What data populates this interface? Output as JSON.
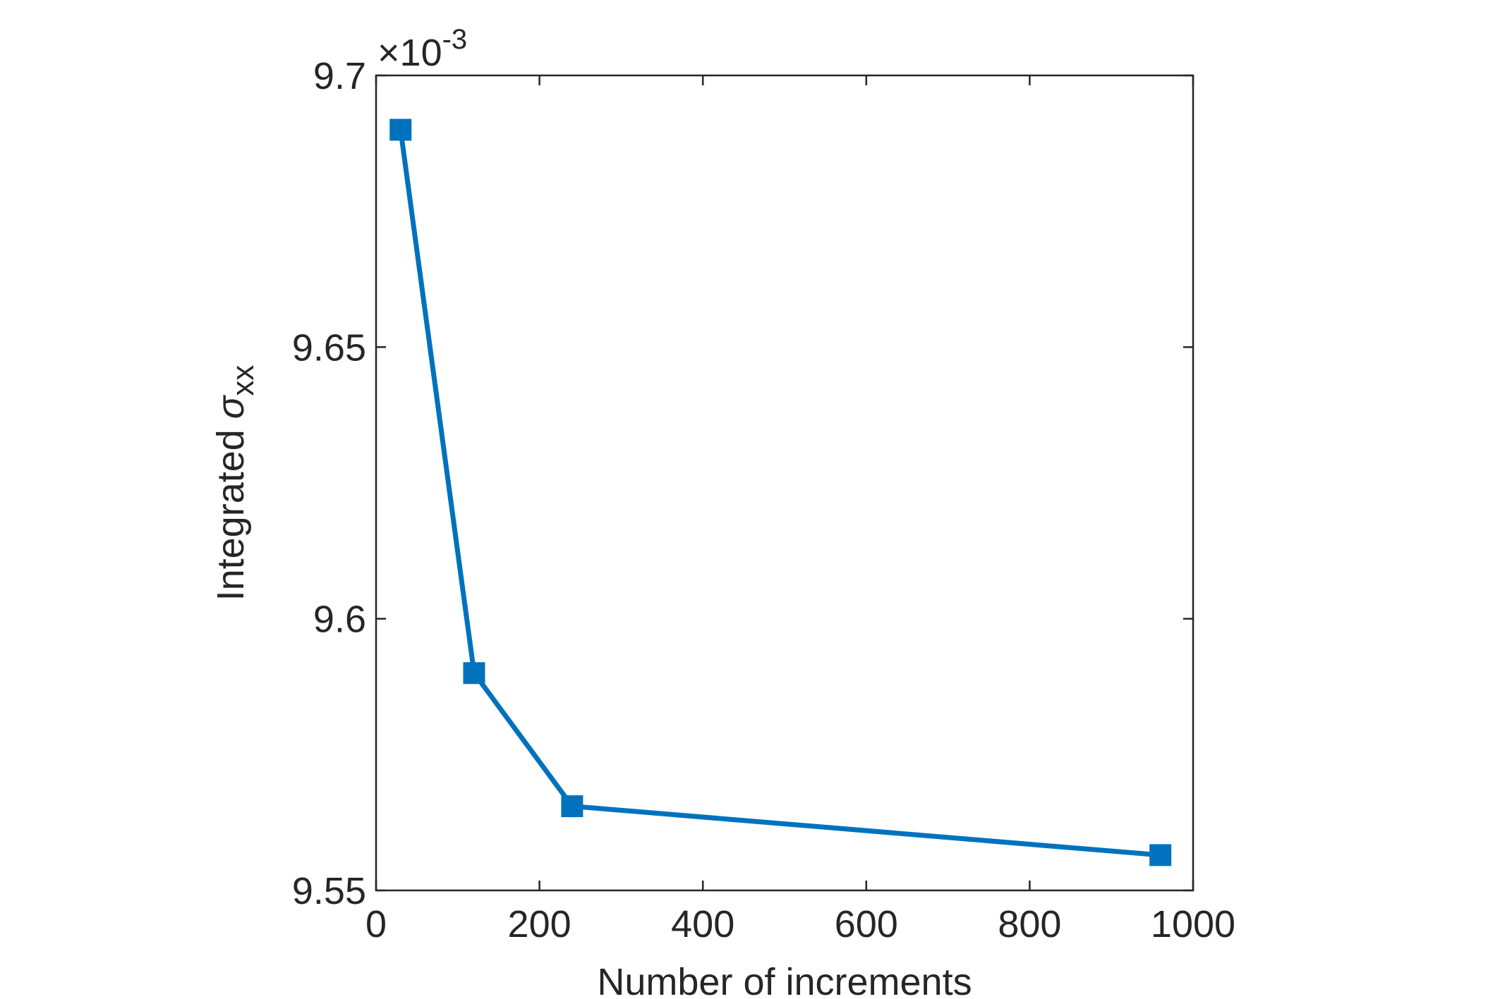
{
  "chart_data": {
    "type": "line",
    "title": "",
    "xlabel": "Number of increments",
    "ylabel_main": "Integrated ",
    "ylabel_symbol": "σ",
    "ylabel_subscript": "xx",
    "xlim": [
      0,
      1000
    ],
    "ylim": [
      9.55,
      9.7
    ],
    "x_ticks": [
      0,
      200,
      400,
      600,
      800,
      1000
    ],
    "x_tick_labels": [
      "0",
      "200",
      "400",
      "600",
      "800",
      "1000"
    ],
    "y_ticks": [
      9.55,
      9.6,
      9.65,
      9.7
    ],
    "y_tick_labels": [
      "9.55",
      "9.6",
      "9.65",
      "9.7"
    ],
    "y_multiplier": {
      "base": "×10",
      "exponent": "-3"
    },
    "grid": false,
    "line_color": "#0072BD",
    "marker": "square",
    "series": [
      {
        "x": [
          30,
          120,
          240,
          960
        ],
        "y": [
          9.69,
          9.59,
          9.5655,
          9.5565
        ]
      }
    ]
  }
}
